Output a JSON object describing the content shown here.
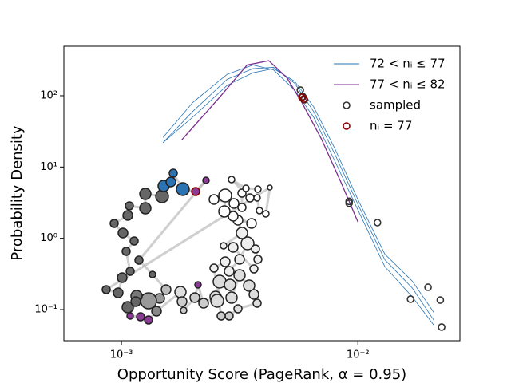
{
  "chart_data": {
    "type": "line",
    "xlabel": "Opportunity Score (PageRank, α = 0.95)",
    "ylabel": "Probability Density",
    "xscale": "log",
    "yscale": "log",
    "xlim": [
      0.000571,
      0.027
    ],
    "ylim": [
      0.0366,
      494
    ],
    "xticks": [
      {
        "value": 0.001,
        "label": "10⁻³"
      },
      {
        "value": 0.01,
        "label": "10⁻²"
      }
    ],
    "yticks": [
      {
        "value": 0.1,
        "label": "10⁻¹"
      },
      {
        "value": 1,
        "label": "10⁰"
      },
      {
        "value": 10,
        "label": "10¹"
      },
      {
        "value": 100,
        "label": "10²"
      }
    ],
    "legend": "upper right",
    "series": [
      {
        "name": "72 < nᵢ ≤ 77",
        "mark": "line",
        "color": "#2a75b6",
        "x": [
          0.0015,
          0.002,
          0.0028,
          0.0036,
          0.0044,
          0.0054,
          0.0065,
          0.008,
          0.01,
          0.013,
          0.017,
          0.021
        ],
        "values": [
          22,
          60,
          170,
          240,
          250,
          150,
          60,
          15,
          3,
          0.5,
          0.2,
          0.07
        ]
      },
      {
        "name": null,
        "mark": "line",
        "color": "#2a75b6",
        "x": [
          0.0015,
          0.002,
          0.0028,
          0.0036,
          0.0044,
          0.0054,
          0.0065,
          0.008,
          0.01,
          0.013,
          0.017,
          0.021
        ],
        "values": [
          26,
          80,
          200,
          270,
          230,
          120,
          50,
          12,
          2.5,
          0.4,
          0.15,
          0.06
        ]
      },
      {
        "name": null,
        "mark": "line",
        "color": "#2a75b6",
        "x": [
          0.0015,
          0.002,
          0.0028,
          0.0036,
          0.0044,
          0.0054,
          0.0065,
          0.008,
          0.01,
          0.013,
          0.017,
          0.021
        ],
        "values": [
          22,
          50,
          140,
          210,
          240,
          160,
          70,
          18,
          3.5,
          0.6,
          0.25,
          0.09
        ]
      },
      {
        "name": "77 < nᵢ ≤ 82",
        "mark": "line",
        "color": "#7b2d8e",
        "x": [
          0.0018,
          0.0026,
          0.0034,
          0.0042,
          0.005,
          0.0058,
          0.007,
          0.0085,
          0.01
        ],
        "values": [
          24,
          95,
          270,
          310,
          180,
          80,
          25,
          6,
          1.7
        ]
      },
      {
        "name": "sampled",
        "mark": "circle",
        "color": "#333333",
        "x": [
          0.00571,
          0.00585,
          0.00594,
          0.00918,
          0.00918,
          0.0121,
          0.0167,
          0.0198,
          0.0223,
          0.0226
        ],
        "values": [
          120,
          97,
          88,
          3.3,
          3.1,
          1.66,
          0.14,
          0.206,
          0.136,
          0.0568
        ]
      },
      {
        "name": "nᵢ = 77",
        "mark": "circle",
        "color": "#8b0000",
        "x": [
          0.0058,
          0.0059
        ],
        "values": [
          95,
          90
        ]
      }
    ]
  }
}
